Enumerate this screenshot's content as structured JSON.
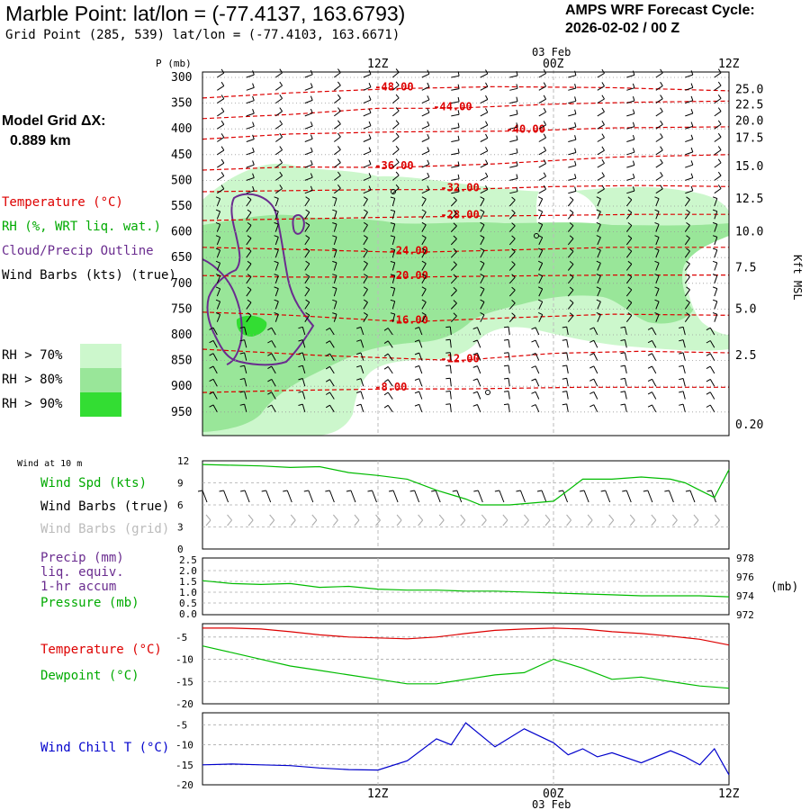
{
  "header": {
    "title": "Marble Point:  lat/lon = (-77.4137, 163.6793)",
    "subtitle": "Grid Point (285, 539) lat/lon = (-77.4103, 163.6671)",
    "cycle_label": "AMPS WRF Forecast Cycle:",
    "cycle_value": "2026-02-02 / 00  Z",
    "model_grid_label": "Model Grid ΔX:",
    "model_grid_value": "0.889 km"
  },
  "colors": {
    "temperature": "#dd0000",
    "rh": "#00bb00",
    "cloud": "#6a2c8f",
    "wind_chill": "#0000cc",
    "rh70": "#ccf7cc",
    "rh80": "#99e699",
    "rh90": "#33dd33"
  },
  "legend": {
    "temperature": "Temperature (°C)",
    "rh": "RH (%, WRT liq. wat.)",
    "cloud": "Cloud/Precip Outline",
    "wind_barbs": "Wind Barbs (kts) (true)",
    "rh70": "RH > 70%",
    "rh80": "RH > 80%",
    "rh90": "RH > 90%"
  },
  "time_axis": {
    "top_labels": [
      "12Z",
      "00Z",
      "12Z"
    ],
    "bottom_labels": [
      "12Z",
      "00Z",
      "12Z"
    ],
    "date_label": "03 Feb"
  },
  "chart_data": [
    {
      "type": "heatmap",
      "name": "cross-section",
      "ylabel": "P (mb)",
      "right_axis_label": "Kft MSL",
      "pressure_ticks": [
        "300",
        "350",
        "400",
        "450",
        "500",
        "550",
        "600",
        "650",
        "700",
        "750",
        "800",
        "850",
        "900",
        "950"
      ],
      "height_ticks": [
        {
          "label": "25.0",
          "p": 324
        },
        {
          "label": "22.5",
          "p": 353
        },
        {
          "label": "20.0",
          "p": 385
        },
        {
          "label": "17.5",
          "p": 418
        },
        {
          "label": "15.0",
          "p": 473
        },
        {
          "label": "12.5",
          "p": 536
        },
        {
          "label": "10.0",
          "p": 600
        },
        {
          "label": "7.5",
          "p": 670
        },
        {
          "label": "5.0",
          "p": 750
        },
        {
          "label": "2.5",
          "p": 840
        },
        {
          "label": "0.20",
          "p": 975
        }
      ],
      "x_range_hours": [
        0,
        36
      ],
      "temperature_contours": [
        {
          "label": "-48.00",
          "x": 13,
          "p": 322,
          "points": [
            [
              0,
              340
            ],
            [
              6,
              330
            ],
            [
              13,
              322
            ],
            [
              20,
              318
            ],
            [
              28,
              320
            ],
            [
              36,
              326
            ]
          ]
        },
        {
          "label": "-44.00",
          "x": 17,
          "p": 360,
          "points": [
            [
              0,
              380
            ],
            [
              6,
              372
            ],
            [
              12,
              360
            ],
            [
              17,
              360
            ],
            [
              24,
              352
            ],
            [
              30,
              348
            ],
            [
              36,
              346
            ]
          ]
        },
        {
          "label": "-40.00",
          "x": 22,
          "p": 404,
          "points": [
            [
              0,
              420
            ],
            [
              6,
              410
            ],
            [
              13,
              406
            ],
            [
              22,
              404
            ],
            [
              28,
              398
            ],
            [
              36,
              396
            ]
          ]
        },
        {
          "label": "-36.00",
          "x": 13,
          "p": 475,
          "points": [
            [
              0,
              480
            ],
            [
              6,
              474
            ],
            [
              13,
              475
            ],
            [
              20,
              468
            ],
            [
              28,
              455
            ],
            [
              36,
              450
            ]
          ]
        },
        {
          "label": "-32.00",
          "x": 17.5,
          "p": 518,
          "points": [
            [
              0,
              522
            ],
            [
              6,
              520
            ],
            [
              12,
              518
            ],
            [
              17.5,
              518
            ],
            [
              24,
              512
            ],
            [
              30,
              510
            ],
            [
              36,
              512
            ]
          ]
        },
        {
          "label": "-28.00",
          "x": 17.5,
          "p": 570,
          "points": [
            [
              0,
              578
            ],
            [
              6,
              575
            ],
            [
              12,
              572
            ],
            [
              17.5,
              570
            ],
            [
              24,
              568
            ],
            [
              30,
              566
            ],
            [
              36,
              566
            ]
          ]
        },
        {
          "label": "-24.00",
          "x": 14,
          "p": 640,
          "points": [
            [
              0,
              630
            ],
            [
              6,
              634
            ],
            [
              14,
              640
            ],
            [
              20,
              636
            ],
            [
              28,
              630
            ],
            [
              36,
              630
            ]
          ]
        },
        {
          "label": "-20.00",
          "x": 14,
          "p": 688,
          "points": [
            [
              0,
              685
            ],
            [
              6,
              688
            ],
            [
              14,
              688
            ],
            [
              20,
              686
            ],
            [
              28,
              684
            ],
            [
              36,
              684
            ]
          ]
        },
        {
          "label": "-16.00",
          "x": 14,
          "p": 775,
          "points": [
            [
              0,
              756
            ],
            [
              6,
              762
            ],
            [
              14,
              775
            ],
            [
              20,
              768
            ],
            [
              28,
              760
            ],
            [
              36,
              762
            ]
          ]
        },
        {
          "label": "-12.00",
          "x": 17.5,
          "p": 850,
          "points": [
            [
              0,
              828
            ],
            [
              8,
              840
            ],
            [
              17.5,
              850
            ],
            [
              24,
              836
            ],
            [
              30,
              832
            ],
            [
              36,
              835
            ]
          ]
        },
        {
          "label": "-8.00",
          "x": 13,
          "p": 905,
          "points": [
            [
              0,
              912
            ],
            [
              6,
              908
            ],
            [
              13,
              905
            ],
            [
              18,
              905
            ],
            [
              26,
              902
            ],
            [
              36,
              902
            ]
          ]
        }
      ],
      "wind_sample_points_hours": [
        1,
        3,
        5,
        7,
        9,
        11,
        13,
        15,
        17,
        19,
        21,
        23,
        25,
        27,
        29,
        31,
        33,
        35
      ]
    },
    {
      "type": "line",
      "name": "wind-10m",
      "title": "Wind at 10 m",
      "labels": {
        "wind_speed": "Wind Spd (kts)",
        "wind_barbs_true": "Wind Barbs (true)",
        "wind_barbs_grid": "Wind Barbs (grid)"
      },
      "y_ticks": [
        "12",
        "9",
        "6",
        "3",
        "0"
      ],
      "ylim": [
        0,
        12
      ],
      "x": [
        0,
        2,
        4,
        6,
        8,
        10,
        12,
        14,
        16,
        18,
        19,
        21,
        24,
        26,
        28,
        30,
        32,
        33,
        34,
        35,
        36
      ],
      "values": [
        11.5,
        11.4,
        11.3,
        11.1,
        11.2,
        10.4,
        10.0,
        9.5,
        8.0,
        6.8,
        6.0,
        6.0,
        6.5,
        9.5,
        9.5,
        9.8,
        9.5,
        9.0,
        8.0,
        7.0,
        10.8
      ]
    },
    {
      "type": "line",
      "name": "precip-pressure",
      "labels": {
        "precip": "Precip (mm)",
        "precip2": "liq. equiv.",
        "precip3": "1-hr accum",
        "pressure": "Pressure (mb)"
      },
      "precip_ticks": [
        "2.5",
        "2.0",
        "1.5",
        "1.0",
        "0.5",
        "0.0"
      ],
      "pressure_ticks": [
        "978",
        "976",
        "974",
        "972"
      ],
      "pressure_unit": "(mb)",
      "pressure_ylim": [
        972,
        978
      ],
      "x": [
        0,
        2,
        4,
        6,
        8,
        10,
        12,
        14,
        16,
        18,
        20,
        22,
        24,
        26,
        28,
        30,
        32,
        34,
        36
      ],
      "pressure": [
        975.6,
        975.3,
        975.2,
        975.3,
        974.9,
        975.0,
        974.7,
        974.6,
        974.6,
        974.5,
        974.5,
        974.4,
        974.3,
        974.2,
        974.1,
        974.0,
        974.0,
        974.0,
        973.9
      ]
    },
    {
      "type": "line",
      "name": "temperature-dewpoint",
      "labels": {
        "temperature": "Temperature (°C)",
        "dewpoint": "Dewpoint (°C)"
      },
      "y_ticks": [
        "-5",
        "-10",
        "-15",
        "-20"
      ],
      "ylim": [
        -20,
        -2
      ],
      "x": [
        0,
        2,
        4,
        6,
        8,
        10,
        12,
        14,
        16,
        18,
        20,
        22,
        24,
        26,
        28,
        30,
        32,
        34,
        36
      ],
      "temperature": [
        -3.0,
        -3.0,
        -3.2,
        -3.8,
        -4.5,
        -5.0,
        -5.2,
        -5.4,
        -5.0,
        -4.2,
        -3.5,
        -3.2,
        -3.0,
        -3.2,
        -3.8,
        -4.2,
        -4.8,
        -5.5,
        -6.8
      ],
      "dewpoint": [
        -7.0,
        -8.5,
        -10.0,
        -11.5,
        -12.5,
        -13.5,
        -14.5,
        -15.5,
        -15.5,
        -14.5,
        -13.5,
        -13.0,
        -10.0,
        -12.0,
        -14.5,
        -14.0,
        -15.0,
        -16.0,
        -16.5
      ]
    },
    {
      "type": "line",
      "name": "wind-chill",
      "labels": {
        "wind_chill": "Wind Chill T (°C)"
      },
      "y_ticks": [
        "-5",
        "-10",
        "-15",
        "-20"
      ],
      "ylim": [
        -20,
        -2
      ],
      "x": [
        0,
        2,
        4,
        6,
        8,
        10,
        12,
        14,
        16,
        17,
        18,
        20,
        22,
        24,
        25,
        26,
        27,
        28,
        30,
        32,
        33,
        34,
        35,
        36
      ],
      "values": [
        -15.0,
        -14.8,
        -15.0,
        -15.2,
        -15.8,
        -16.2,
        -16.3,
        -14.0,
        -8.5,
        -10.0,
        -4.5,
        -10.5,
        -6.0,
        -9.5,
        -12.5,
        -11.0,
        -13.0,
        -12.0,
        -14.5,
        -11.5,
        -13.0,
        -15.0,
        -11.0,
        -17.5
      ]
    }
  ]
}
